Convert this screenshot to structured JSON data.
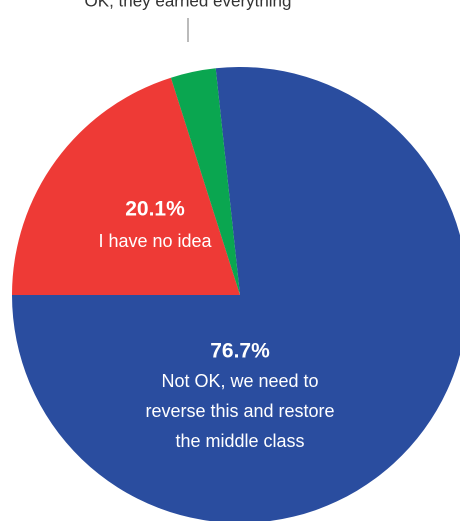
{
  "chart_data": {
    "type": "pie",
    "categories": [
      [
        "Not OK, we need to",
        "reverse this and restore",
        "the middle class"
      ],
      [
        "I have no idea"
      ],
      [
        "OK, they earned everything"
      ]
    ],
    "values": [
      76.7,
      20.1,
      3.2
    ],
    "value_labels": [
      "76.7%",
      "20.1%",
      null
    ],
    "colors": [
      "#2a4d9f",
      "#ee3a36",
      "#0aa650"
    ]
  }
}
